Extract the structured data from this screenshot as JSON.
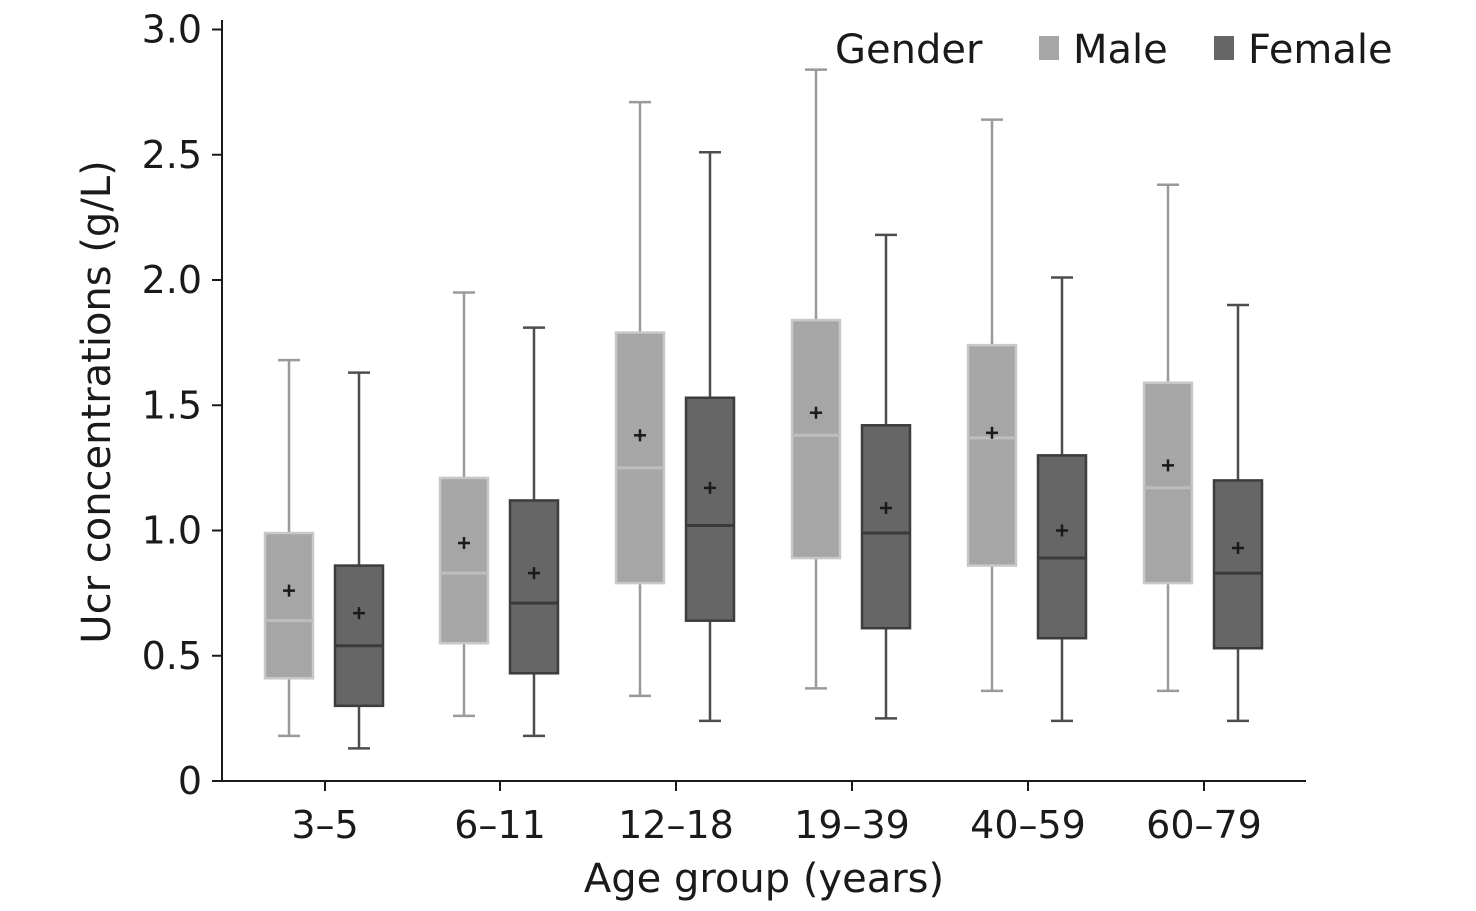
{
  "chart_data": {
    "type": "box",
    "xlabel": "Age group (years)",
    "ylabel": "Ucr concentrations (g/L)",
    "ylim": [
      0,
      3.0
    ],
    "yticks": [
      {
        "value": 0,
        "label": "0"
      },
      {
        "value": 0.5,
        "label": "0.5"
      },
      {
        "value": 1.0,
        "label": "1.0"
      },
      {
        "value": 1.5,
        "label": "1.5"
      },
      {
        "value": 2.0,
        "label": "2.0"
      },
      {
        "value": 2.5,
        "label": "2.5"
      },
      {
        "value": 3.0,
        "label": "3.0"
      }
    ],
    "categories": [
      "3–5",
      "6–11",
      "12–18",
      "19–39",
      "40–59",
      "60–79"
    ],
    "legend": {
      "title": "Gender",
      "position": "top-right"
    },
    "series": [
      {
        "name": "Male",
        "color": "#a6a6a6",
        "boxes": [
          {
            "min": 0.18,
            "q1": 0.41,
            "median": 0.64,
            "q3": 0.99,
            "max": 1.68,
            "mean": 0.76
          },
          {
            "min": 0.26,
            "q1": 0.55,
            "median": 0.83,
            "q3": 1.21,
            "max": 1.95,
            "mean": 0.95
          },
          {
            "min": 0.34,
            "q1": 0.79,
            "median": 1.25,
            "q3": 1.79,
            "max": 2.71,
            "mean": 1.38
          },
          {
            "min": 0.37,
            "q1": 0.89,
            "median": 1.38,
            "q3": 1.84,
            "max": 2.84,
            "mean": 1.47
          },
          {
            "min": 0.36,
            "q1": 0.86,
            "median": 1.37,
            "q3": 1.74,
            "max": 2.64,
            "mean": 1.39
          },
          {
            "min": 0.36,
            "q1": 0.79,
            "median": 1.17,
            "q3": 1.59,
            "max": 2.38,
            "mean": 1.26
          }
        ]
      },
      {
        "name": "Female",
        "color": "#666666",
        "boxes": [
          {
            "min": 0.13,
            "q1": 0.3,
            "median": 0.54,
            "q3": 0.86,
            "max": 1.63,
            "mean": 0.67
          },
          {
            "min": 0.18,
            "q1": 0.43,
            "median": 0.71,
            "q3": 1.12,
            "max": 1.81,
            "mean": 0.83
          },
          {
            "min": 0.24,
            "q1": 0.64,
            "median": 1.02,
            "q3": 1.53,
            "max": 2.51,
            "mean": 1.17
          },
          {
            "min": 0.25,
            "q1": 0.61,
            "median": 0.99,
            "q3": 1.42,
            "max": 2.18,
            "mean": 1.09
          },
          {
            "min": 0.24,
            "q1": 0.57,
            "median": 0.89,
            "q3": 1.3,
            "max": 2.01,
            "mean": 1.0
          },
          {
            "min": 0.24,
            "q1": 0.53,
            "median": 0.83,
            "q3": 1.2,
            "max": 1.9,
            "mean": 0.93
          }
        ]
      }
    ]
  }
}
